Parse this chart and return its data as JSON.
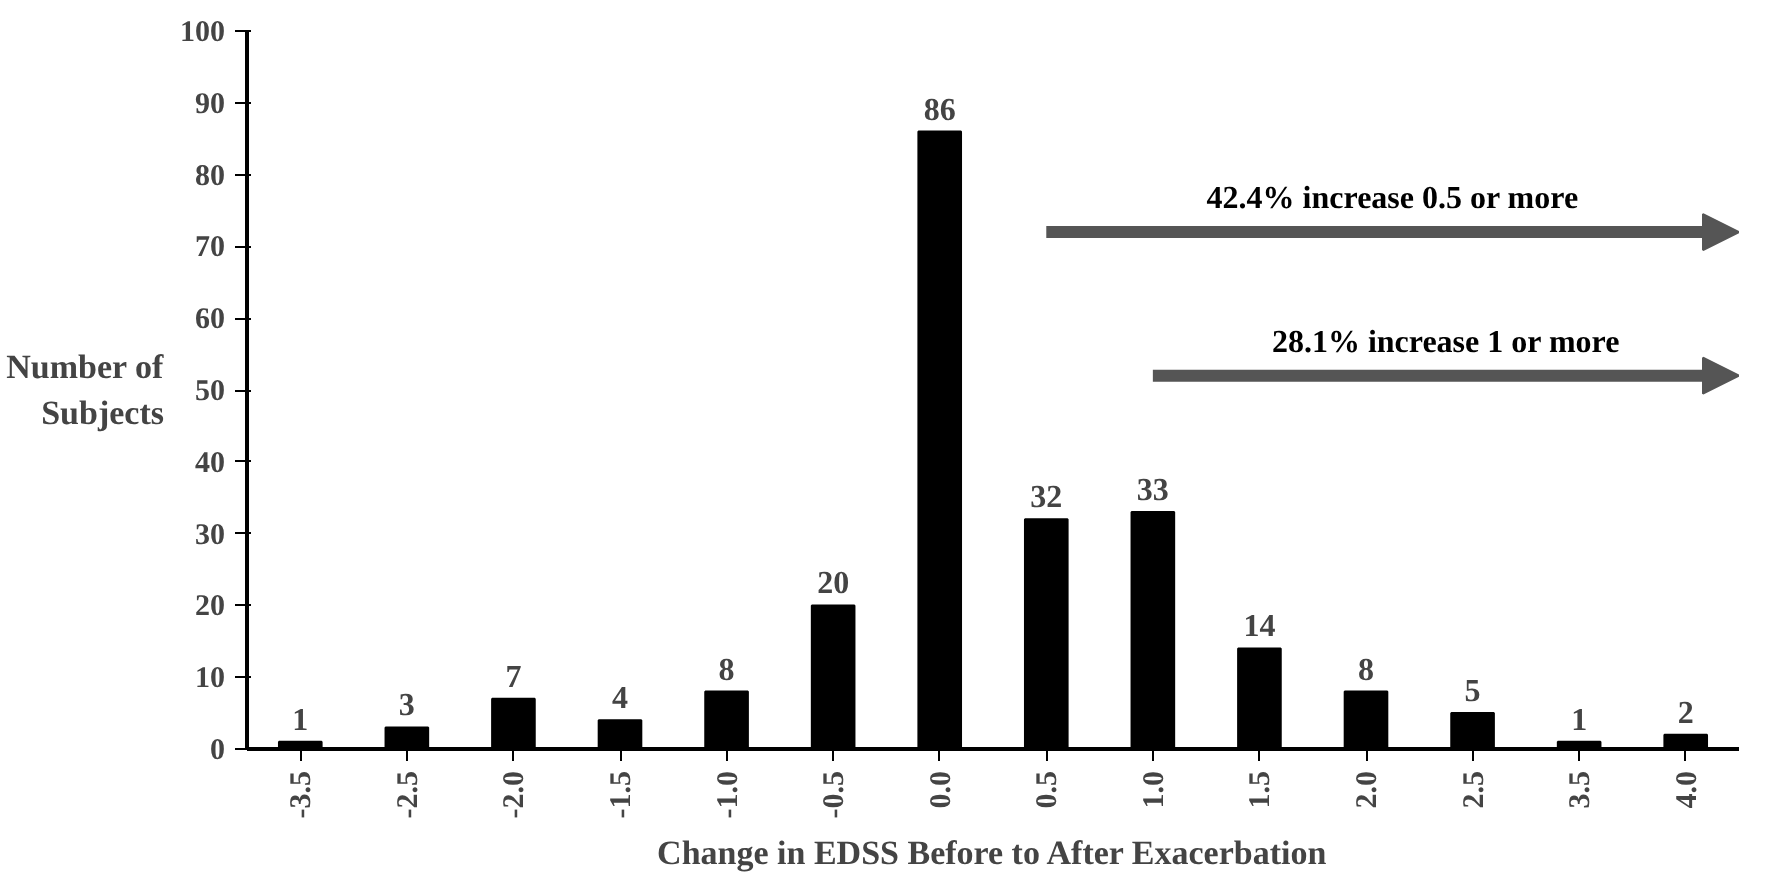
{
  "chart_data": {
    "type": "bar",
    "xlabel": "Change in EDSS Before to After Exacerbation",
    "ylabel": "Number of\nSubjects",
    "categories": [
      "-3.5",
      "-2.5",
      "-2.0",
      "-1.5",
      "-1.0",
      "-0.5",
      "0.0",
      "0.5",
      "1.0",
      "1.5",
      "2.0",
      "2.5",
      "3.5",
      "4.0"
    ],
    "values": [
      1,
      3,
      7,
      4,
      8,
      20,
      86,
      32,
      33,
      14,
      8,
      5,
      1,
      2
    ],
    "color": "#000000",
    "data_labels": true,
    "ylim": [
      0,
      100
    ],
    "yticks": [
      0,
      10,
      20,
      30,
      40,
      50,
      60,
      70,
      80,
      90,
      100
    ],
    "grid": false,
    "annotations": [
      "42.4% increase 0.5 or more",
      "28.1% increase 1 or more"
    ]
  }
}
